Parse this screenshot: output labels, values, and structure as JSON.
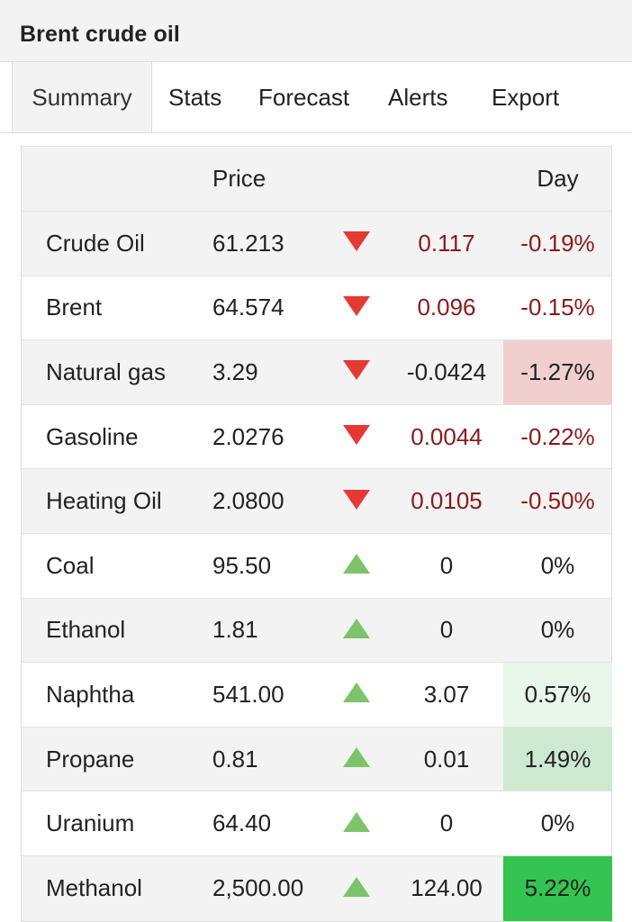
{
  "title": "Brent crude oil",
  "tabs": [
    {
      "label": "Summary",
      "active": true
    },
    {
      "label": "Stats",
      "active": false
    },
    {
      "label": "Forecast",
      "active": false
    },
    {
      "label": "Alerts",
      "active": false
    },
    {
      "label": "Export",
      "active": false
    }
  ],
  "table": {
    "headers": {
      "price": "Price",
      "day": "Day"
    },
    "rows": [
      {
        "name": "Crude Oil",
        "price": "61.213",
        "direction": "down",
        "change": "0.117",
        "pct": "-0.19%",
        "change_color": "#8b1a1a",
        "pct_color": "#8b1a1a",
        "pct_bg": ""
      },
      {
        "name": "Brent",
        "price": "64.574",
        "direction": "down",
        "change": "0.096",
        "pct": "-0.15%",
        "change_color": "#8b1a1a",
        "pct_color": "#8b1a1a",
        "pct_bg": ""
      },
      {
        "name": "Natural gas",
        "price": "3.29",
        "direction": "down",
        "change": "-0.0424",
        "pct": "-1.27%",
        "change_color": "#222222",
        "pct_color": "#222222",
        "pct_bg": "#f2cfcf"
      },
      {
        "name": "Gasoline",
        "price": "2.0276",
        "direction": "down",
        "change": "0.0044",
        "pct": "-0.22%",
        "change_color": "#8b1a1a",
        "pct_color": "#8b1a1a",
        "pct_bg": ""
      },
      {
        "name": "Heating Oil",
        "price": "2.0800",
        "direction": "down",
        "change": "0.0105",
        "pct": "-0.50%",
        "change_color": "#8b1a1a",
        "pct_color": "#8b1a1a",
        "pct_bg": ""
      },
      {
        "name": "Coal",
        "price": "95.50",
        "direction": "up",
        "change": "0",
        "pct": "0%",
        "change_color": "#222222",
        "pct_color": "#222222",
        "pct_bg": ""
      },
      {
        "name": "Ethanol",
        "price": "1.81",
        "direction": "up",
        "change": "0",
        "pct": "0%",
        "change_color": "#222222",
        "pct_color": "#222222",
        "pct_bg": ""
      },
      {
        "name": "Naphtha",
        "price": "541.00",
        "direction": "up",
        "change": "3.07",
        "pct": "0.57%",
        "change_color": "#222222",
        "pct_color": "#222222",
        "pct_bg": "#e9f7ea"
      },
      {
        "name": "Propane",
        "price": "0.81",
        "direction": "up",
        "change": "0.01",
        "pct": "1.49%",
        "change_color": "#222222",
        "pct_color": "#222222",
        "pct_bg": "#cde9d2"
      },
      {
        "name": "Uranium",
        "price": "64.40",
        "direction": "up",
        "change": "0",
        "pct": "0%",
        "change_color": "#222222",
        "pct_color": "#222222",
        "pct_bg": ""
      },
      {
        "name": "Methanol",
        "price": "2,500.00",
        "direction": "up",
        "change": "124.00",
        "pct": "5.22%",
        "change_color": "#222222",
        "pct_color": "#222222",
        "pct_bg": "#35c452"
      }
    ]
  },
  "colors": {
    "down_arrow": "#e53935",
    "up_arrow": "#7cc36a",
    "header_bg": "#f3f3f3"
  }
}
